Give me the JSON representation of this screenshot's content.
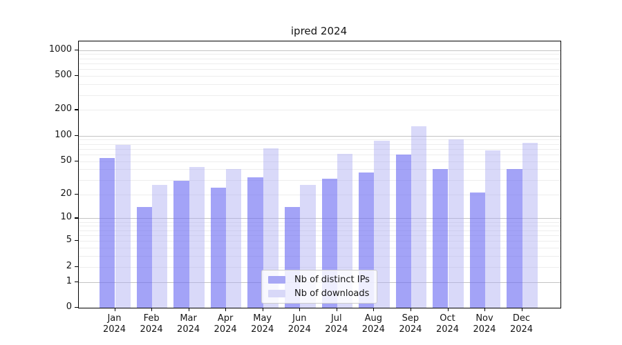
{
  "title": "ipred 2024",
  "legend": {
    "items": [
      {
        "label": "Nb of distinct IPs",
        "color": "#a8a8f5"
      },
      {
        "label": "Nb of downloads",
        "color": "#d8d8f8"
      }
    ]
  },
  "colors": {
    "ips_bar": "rgba(110,110,242,0.63)",
    "downloads_bar": "rgba(170,170,241,0.45)",
    "major_grid": "#c3c3c3",
    "minor_grid": "#ededed",
    "spine": "#000000",
    "text": "#151515"
  },
  "chart_data": {
    "type": "bar",
    "title": "ipred 2024",
    "categories": [
      "Jan 2024",
      "Feb 2024",
      "Mar 2024",
      "Apr 2024",
      "May 2024",
      "Jun 2024",
      "Jul 2024",
      "Aug 2024",
      "Sep 2024",
      "Oct 2024",
      "Nov 2024",
      "Dec 2024"
    ],
    "series": [
      {
        "name": "Nb of distinct IPs",
        "values": [
          55,
          14,
          29,
          24,
          32,
          14,
          31,
          37,
          60,
          40,
          21,
          40
        ]
      },
      {
        "name": "Nb of downloads",
        "values": [
          78,
          26,
          43,
          40,
          71,
          26,
          61,
          88,
          130,
          91,
          67,
          83
        ]
      }
    ],
    "xlabel": "",
    "ylabel": "",
    "yscale": "log1p",
    "ylim": [
      0,
      1200
    ],
    "yticks": [
      0,
      1,
      2,
      5,
      10,
      20,
      50,
      100,
      200,
      500,
      1000
    ],
    "major_gridlines": [
      1,
      10,
      100,
      1000
    ],
    "grid": true,
    "legend_position": "lower center"
  }
}
